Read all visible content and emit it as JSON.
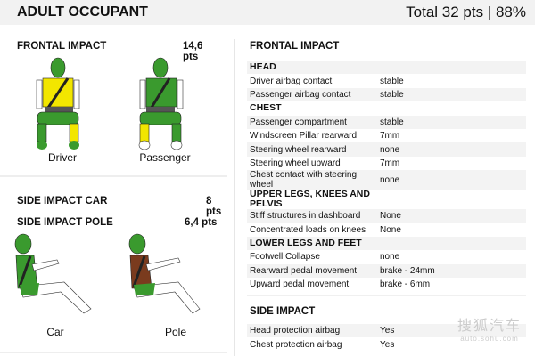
{
  "header": {
    "title": "ADULT OCCUPANT",
    "score": "Total 32 pts | 88%"
  },
  "left": {
    "frontal": {
      "label": "FRONTAL IMPACT",
      "pts": "14,6 pts",
      "figures": [
        {
          "caption": "Driver",
          "chest": "#f2e600",
          "lower_leg_right": "#f2e600"
        },
        {
          "caption": "Passenger",
          "chest": "#3a9a2e",
          "lower_leg_left": "#f2e600"
        }
      ]
    },
    "side_car": {
      "label": "SIDE IMPACT CAR",
      "pts": "8 pts",
      "caption": "Car"
    },
    "side_pole": {
      "label": "SIDE IMPACT POLE",
      "pts": "6,4 pts",
      "caption": "Pole",
      "chest": "#7a3b1e"
    }
  },
  "colors": {
    "good": "#3a9a2e",
    "adequate": "#f2e600",
    "poor": "#7a3b1e"
  },
  "right": {
    "frontal_title": "FRONTAL IMPACT",
    "frontal_rows": [
      {
        "type": "head",
        "k": "HEAD"
      },
      {
        "k": "Driver airbag contact",
        "v": "stable"
      },
      {
        "k": "Passenger airbag contact",
        "v": "stable"
      },
      {
        "type": "head",
        "k": "CHEST"
      },
      {
        "k": "Passenger compartment",
        "v": "stable"
      },
      {
        "k": "Windscreen Pillar rearward",
        "v": "7mm"
      },
      {
        "k": "Steering wheel rearward",
        "v": "none"
      },
      {
        "k": "Steering wheel upward",
        "v": "7mm"
      },
      {
        "k": "Chest contact with steering wheel",
        "v": "none"
      },
      {
        "type": "head",
        "k": "UPPER LEGS, KNEES AND PELVIS"
      },
      {
        "k": "Stiff structures in dashboard",
        "v": "None"
      },
      {
        "k": "Concentrated loads on knees",
        "v": "None"
      },
      {
        "type": "head",
        "k": "LOWER LEGS AND FEET"
      },
      {
        "k": "Footwell Collapse",
        "v": "none"
      },
      {
        "k": "Rearward pedal movement",
        "v": "brake - 24mm"
      },
      {
        "k": "Upward pedal movement",
        "v": "brake - 6mm"
      }
    ],
    "side_title": "SIDE IMPACT",
    "side_rows": [
      {
        "k": "Head protection airbag",
        "v": "Yes"
      },
      {
        "k": "Chest protection airbag",
        "v": "Yes"
      }
    ]
  },
  "watermark": {
    "cn": "搜狐汽车",
    "url": "auto.sohu.com"
  }
}
